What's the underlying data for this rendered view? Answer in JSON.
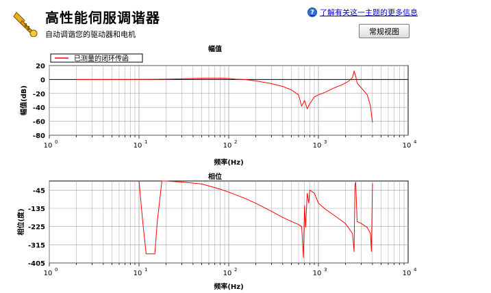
{
  "header": {
    "title": "高性能伺服调谐器",
    "subtitle": "自动调谐您的驱动器和电机",
    "help_link": "了解有关这一主题的更多信息",
    "help_icon": "help-question-icon",
    "logo_icon": "trumpet-icon",
    "view_button": "常规视图"
  },
  "colors": {
    "trace": "#ff0000",
    "grid": "#a0a0a0",
    "zero_line": "#000000"
  },
  "chart_data": [
    {
      "type": "line",
      "title": "幅值",
      "xlabel": "频率(Hz)",
      "ylabel": "幅值(dB)",
      "x_scale": "log",
      "xlim": [
        1,
        10000
      ],
      "ylim": [
        -80,
        20
      ],
      "yticks": [
        "20",
        "0",
        "-20",
        "-40",
        "-60",
        "-80"
      ],
      "xticks": [
        "10^0",
        "10^1",
        "10^2",
        "10^3",
        "10^4"
      ],
      "grid": true,
      "legend": "top-left",
      "series": [
        {
          "name": "已测量的闭环传函",
          "x": [
            2,
            5,
            10,
            20,
            40,
            60,
            80,
            100,
            120,
            150,
            200,
            300,
            400,
            500,
            600,
            650,
            700,
            750,
            800,
            900,
            1000,
            1200,
            1500,
            1800,
            2000,
            2200,
            2400,
            2500,
            2600,
            2700,
            3000,
            3500,
            3800,
            4000
          ],
          "y": [
            0,
            0,
            0.2,
            0.5,
            1.5,
            2,
            2,
            1.5,
            0.5,
            0,
            -2,
            -6,
            -10,
            -15,
            -22,
            -38,
            -30,
            -42,
            -35,
            -25,
            -22,
            -18,
            -12,
            -8,
            -5,
            -2,
            3,
            12,
            5,
            -5,
            -12,
            -22,
            -38,
            -62
          ]
        }
      ]
    },
    {
      "type": "line",
      "title": "相位",
      "xlabel": "频率(Hz)",
      "ylabel": "相位(度)",
      "x_scale": "log",
      "xlim": [
        1,
        10000
      ],
      "ylim": [
        -405,
        0
      ],
      "yticks": [
        "-45",
        "-135",
        "-225",
        "-315",
        "-405"
      ],
      "xticks": [
        "10^0",
        "10^1",
        "10^2",
        "10^3",
        "10^4"
      ],
      "grid": true,
      "series": [
        {
          "x": [
            10,
            11,
            12,
            15,
            16,
            18,
            20,
            30,
            50,
            80,
            100,
            150,
            200,
            300,
            400,
            500,
            600,
            650,
            680,
            700,
            720,
            750,
            780,
            800,
            900,
            1000,
            1200,
            1500,
            2000,
            2400,
            2500,
            2550,
            2600,
            2700,
            3000,
            3500,
            3800,
            3900,
            4000
          ],
          "y": [
            0,
            -200,
            -360,
            -360,
            -200,
            0,
            0,
            -5,
            -15,
            -40,
            -55,
            -85,
            -110,
            -150,
            -180,
            -200,
            -215,
            -225,
            -380,
            -120,
            -230,
            -60,
            -110,
            -45,
            -60,
            -110,
            -140,
            -170,
            -210,
            -260,
            -350,
            -20,
            -5,
            -200,
            -210,
            -230,
            -260,
            -350,
            -10
          ]
        }
      ]
    }
  ]
}
